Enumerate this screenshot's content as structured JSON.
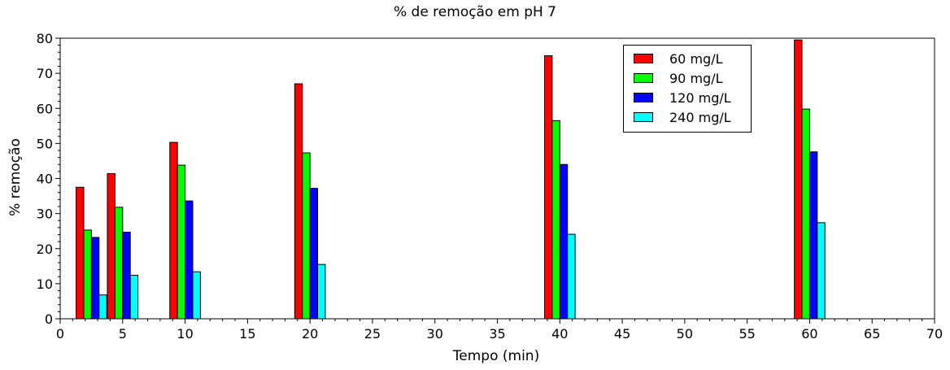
{
  "chart_data": {
    "type": "bar",
    "title": "% de remoção em pH 7",
    "xlabel": "Tempo (min)",
    "ylabel": "% remoção",
    "x": [
      2.5,
      5,
      10,
      20,
      40,
      60
    ],
    "xlim": [
      0,
      70
    ],
    "ylim": [
      0,
      80
    ],
    "xticks": [
      0,
      5,
      10,
      15,
      20,
      25,
      30,
      35,
      40,
      45,
      50,
      55,
      60,
      65,
      70
    ],
    "yticks": [
      0,
      10,
      20,
      30,
      40,
      50,
      60,
      70,
      80
    ],
    "grid": false,
    "legend_position": "top-right",
    "series": [
      {
        "name": "60 mg/L",
        "color": "#ff0000",
        "values": [
          37.5,
          41.4,
          50.3,
          67.0,
          75.0,
          79.5
        ]
      },
      {
        "name": "90 mg/L",
        "color": "#00ff00",
        "values": [
          25.3,
          31.8,
          43.8,
          47.3,
          56.5,
          59.8
        ]
      },
      {
        "name": "120 mg/L",
        "color": "#0000ff",
        "values": [
          23.2,
          24.7,
          33.6,
          37.2,
          44.0,
          47.6
        ]
      },
      {
        "name": "240 mg/L",
        "color": "#00ffff",
        "values": [
          6.8,
          12.4,
          13.4,
          15.5,
          24.1,
          27.4
        ]
      }
    ]
  }
}
